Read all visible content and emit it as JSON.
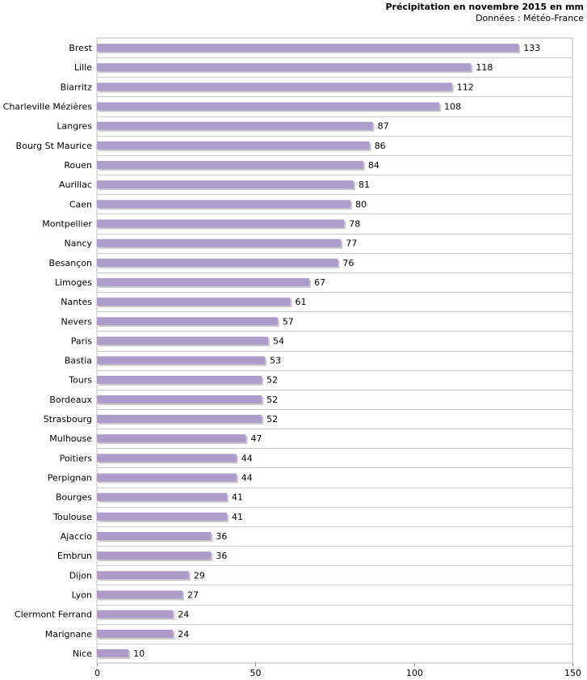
{
  "chart_data": {
    "type": "bar",
    "orientation": "horizontal",
    "title": "Précipitation en novembre 2015 en mm",
    "subtitle": "Données : Météo-France",
    "xlabel": "",
    "ylabel": "",
    "xlim": [
      0,
      150
    ],
    "xticks": [
      0,
      50,
      100,
      150
    ],
    "grid": true,
    "bar_color": "#ac9cc9",
    "bar_shadow_color": "#c9c9c9",
    "categories": [
      "Brest",
      "Lille",
      "Biarritz",
      "Charleville Mézières",
      "Langres",
      "Bourg St Maurice",
      "Rouen",
      "Aurillac",
      "Caen",
      "Montpellier",
      "Nancy",
      "Besançon",
      "Limoges",
      "Nantes",
      "Nevers",
      "Paris",
      "Bastia",
      "Tours",
      "Bordeaux",
      "Strasbourg",
      "Mulhouse",
      "Poitiers",
      "Perpignan",
      "Bourges",
      "Toulouse",
      "Ajaccio",
      "Embrun",
      "Dijon",
      "Lyon",
      "Clermont Ferrand",
      "Marignane",
      "Nice"
    ],
    "values": [
      133,
      118,
      112,
      108,
      87,
      86,
      84,
      81,
      80,
      78,
      77,
      76,
      67,
      61,
      57,
      54,
      53,
      52,
      52,
      52,
      47,
      44,
      44,
      41,
      41,
      36,
      36,
      29,
      27,
      24,
      24,
      10
    ]
  }
}
